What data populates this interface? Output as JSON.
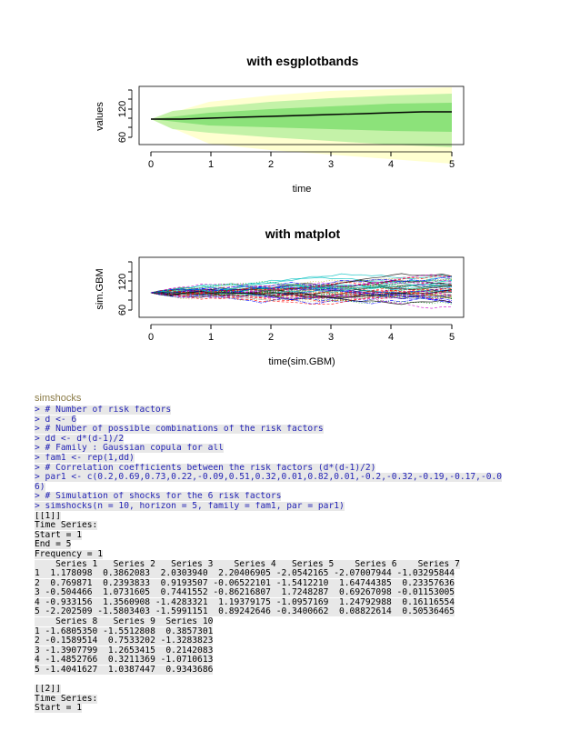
{
  "plot1": {
    "title": "with esgplotbands",
    "xlabel": "time",
    "ylabel": "values",
    "xticks": [
      "0",
      "1",
      "2",
      "3",
      "4",
      "5"
    ],
    "yticks": [
      "60",
      "120"
    ]
  },
  "plot2": {
    "title": "with matplot",
    "xlabel": "time(sim.GBM)",
    "ylabel": "sim.GBM",
    "xticks": [
      "0",
      "1",
      "2",
      "3",
      "4",
      "5"
    ],
    "yticks": [
      "60",
      "120"
    ]
  },
  "section_label": "simshocks",
  "console": [
    {
      "text": "> # Number of risk factors",
      "kind": "cmd"
    },
    {
      "text": "> d <- 6",
      "kind": "cmd"
    },
    {
      "text": "> # Number of possible combinations of the risk factors",
      "kind": "cmd"
    },
    {
      "text": "> dd <- d*(d-1)/2",
      "kind": "cmd"
    },
    {
      "text": "> # Family : Gaussian copula for all",
      "kind": "cmd"
    },
    {
      "text": "> fam1 <- rep(1,dd)",
      "kind": "cmd"
    },
    {
      "text": "> # Correlation coefficients between the risk factors (d*(d-1)/2)",
      "kind": "cmd"
    },
    {
      "text": "> par1 <- c(0.2,0.69,0.73,0.22,-0.09,0.51,0.32,0.01,0.82,0.01,-0.2,-0.32,-0.19,-0.17,-0.0",
      "kind": "cmd"
    },
    {
      "text": "6)",
      "kind": "cmd"
    },
    {
      "text": "> # Simulation of shocks for the 6 risk factors",
      "kind": "cmd"
    },
    {
      "text": "> simshocks(n = 10, horizon = 5, family = fam1, par = par1)",
      "kind": "cmd"
    },
    {
      "text": "[[1]]",
      "kind": "out"
    },
    {
      "text": "Time Series:",
      "kind": "out"
    },
    {
      "text": "Start = 1",
      "kind": "out"
    },
    {
      "text": "End = 5",
      "kind": "out"
    },
    {
      "text": "Frequency = 1",
      "kind": "out"
    },
    {
      "text": "    Series 1   Series 2   Series 3    Series 4   Series 5    Series 6    Series 7",
      "kind": "out"
    },
    {
      "text": "1  1.178098  0.3862083  2.0303940  2.20406905 -2.0542165 -2.07007944 -1.03295844",
      "kind": "out"
    },
    {
      "text": "2  0.769871  0.2393833  0.9193507 -0.06522101 -1.5412210  1.64744385  0.23357636",
      "kind": "out"
    },
    {
      "text": "3 -0.504466  1.0731605  0.7441552 -0.86216807  1.7248287  0.69267098 -0.01153005",
      "kind": "out"
    },
    {
      "text": "4 -0.933156  1.3560908 -1.4283321  1.19379175 -1.0957169  1.24792988  0.16116554",
      "kind": "out"
    },
    {
      "text": "5 -2.202509 -1.5803403 -1.5991151  0.89242646 -0.3400662  0.08822614  0.50536465",
      "kind": "out"
    },
    {
      "text": "    Series 8   Series 9  Series 10",
      "kind": "out"
    },
    {
      "text": "1 -1.6805350 -1.5512808  0.3857301",
      "kind": "out"
    },
    {
      "text": "2 -0.1589514  0.7533202 -1.3283823",
      "kind": "out"
    },
    {
      "text": "3 -1.3907799  1.2653415  0.2142083",
      "kind": "out"
    },
    {
      "text": "4 -1.4852766  0.3211369 -1.0710613",
      "kind": "out"
    },
    {
      "text": "5 -1.4041627  1.0387447  0.9343686",
      "kind": "out"
    },
    {
      "text": "",
      "kind": "blank"
    },
    {
      "text": "[[2]]",
      "kind": "out"
    },
    {
      "text": "Time Series:",
      "kind": "out"
    },
    {
      "text": "Start = 1",
      "kind": "out"
    }
  ]
}
